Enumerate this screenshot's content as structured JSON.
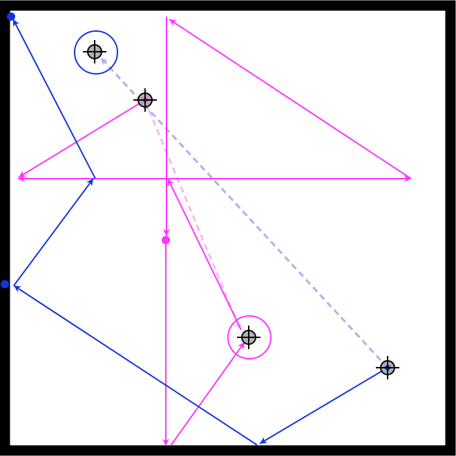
{
  "colors": {
    "background": "#ffffff",
    "frame": "#000000",
    "magenta": "#ff33ff",
    "blue": "#1133dd",
    "magenta_dash": "#f5b8f5",
    "blue_dash": "#aab2ee",
    "marker_fill": "#b0b0b0",
    "crosshair": "#000000"
  },
  "icons": {
    "target": "crosshair-target-icon",
    "endpoint": "filled-dot-icon",
    "arrowhead": "arrowhead-icon"
  },
  "paths": [
    {
      "name": "magenta-path",
      "color": "magenta",
      "start": "magenta-dot",
      "end": "magenta-target-ringed"
    },
    {
      "name": "blue-path",
      "color": "blue",
      "start": "blue-target",
      "end": "blue-dot"
    }
  ],
  "targets": [
    {
      "name": "magenta-target-ringed",
      "color": "magenta",
      "ringed": true
    },
    {
      "name": "magenta-target-top",
      "color": "magenta",
      "ringed": false
    },
    {
      "name": "blue-target-ringed",
      "color": "blue",
      "ringed": true
    },
    {
      "name": "blue-target-bottom",
      "color": "blue",
      "ringed": false
    }
  ]
}
